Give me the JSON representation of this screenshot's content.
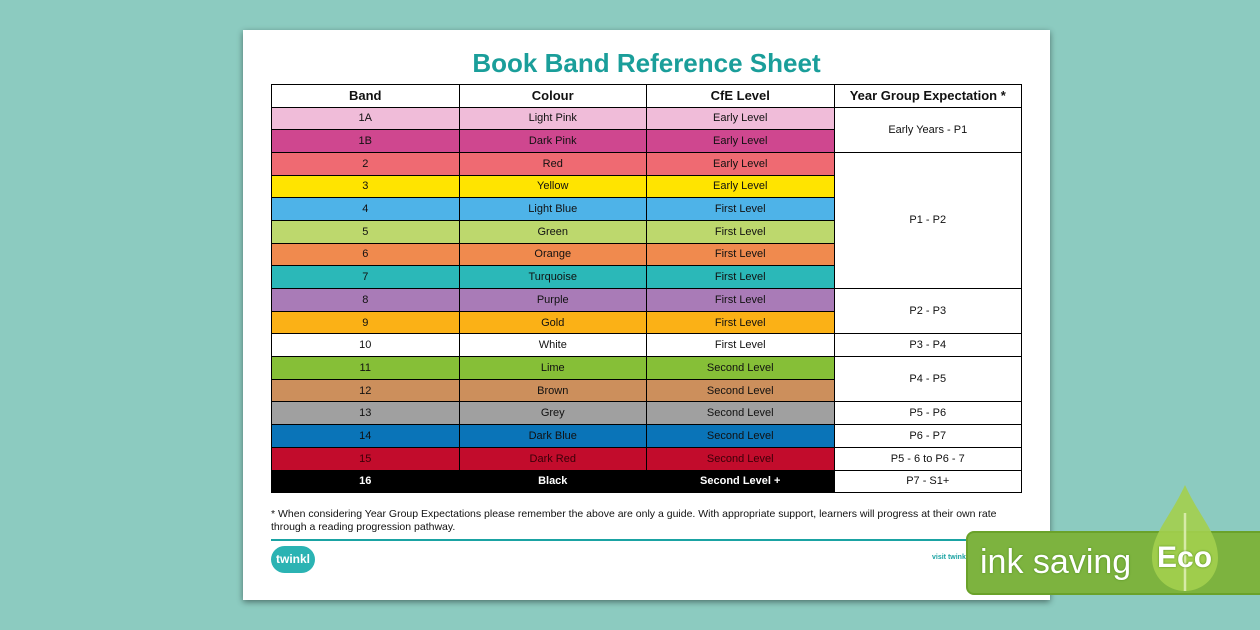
{
  "title": "Book Band Reference Sheet",
  "headers": [
    "Band",
    "Colour",
    "CfE Level",
    "Year Group Expectation *"
  ],
  "rows": [
    {
      "band": "1A",
      "colour": "Light Pink",
      "level": "Early Level",
      "bg": "#f0bcd9",
      "fg": "#111"
    },
    {
      "band": "1B",
      "colour": "Dark Pink",
      "level": "Early Level",
      "bg": "#cf478f",
      "fg": "#111"
    },
    {
      "band": "2",
      "colour": "Red",
      "level": "Early Level",
      "bg": "#ef6a72",
      "fg": "#111"
    },
    {
      "band": "3",
      "colour": "Yellow",
      "level": "Early Level",
      "bg": "#ffe400",
      "fg": "#111"
    },
    {
      "band": "4",
      "colour": "Light Blue",
      "level": "First Level",
      "bg": "#4eb3e8",
      "fg": "#111"
    },
    {
      "band": "5",
      "colour": "Green",
      "level": "First Level",
      "bg": "#bdd86d",
      "fg": "#111"
    },
    {
      "band": "6",
      "colour": "Orange",
      "level": "First Level",
      "bg": "#f08a4e",
      "fg": "#111"
    },
    {
      "band": "7",
      "colour": "Turquoise",
      "level": "First Level",
      "bg": "#2bb8b8",
      "fg": "#111"
    },
    {
      "band": "8",
      "colour": "Purple",
      "level": "First Level",
      "bg": "#a97bb7",
      "fg": "#111"
    },
    {
      "band": "9",
      "colour": "Gold",
      "level": "First Level",
      "bg": "#fbb116",
      "fg": "#111"
    },
    {
      "band": "10",
      "colour": "White",
      "level": "First Level",
      "bg": "#ffffff",
      "fg": "#111"
    },
    {
      "band": "11",
      "colour": "Lime",
      "level": "Second Level",
      "bg": "#86bf37",
      "fg": "#111"
    },
    {
      "band": "12",
      "colour": "Brown",
      "level": "Second Level",
      "bg": "#cc8f5c",
      "fg": "#111"
    },
    {
      "band": "13",
      "colour": "Grey",
      "level": "Second Level",
      "bg": "#a0a0a0",
      "fg": "#111"
    },
    {
      "band": "14",
      "colour": "Dark Blue",
      "level": "Second Level",
      "bg": "#0a74b8",
      "fg": "#111"
    },
    {
      "band": "15",
      "colour": "Dark Red",
      "level": "Second Level",
      "bg": "#c20c2c",
      "fg": "#3a0008"
    },
    {
      "band": "16",
      "colour": "Black",
      "level": "Second Level +",
      "bg": "#000000",
      "fg": "#ffffff"
    }
  ],
  "year_groups": [
    {
      "label": "Early Years - P1",
      "span": 2
    },
    {
      "label": "P1 - P2",
      "span": 6
    },
    {
      "label": "P2 - P3",
      "span": 2
    },
    {
      "label": "P3 - P4",
      "span": 1
    },
    {
      "label": "P4 - P5",
      "span": 2
    },
    {
      "label": "P5 - P6",
      "span": 1
    },
    {
      "label": "P6 - P7",
      "span": 1
    },
    {
      "label": "P5 - 6 to P6 - 7",
      "span": 1
    },
    {
      "label": "P7 - S1+",
      "span": 1
    }
  ],
  "note": "* When considering Year Group Expectations please remember the above are only a guide. With appropriate support, learners will progress at their own rate through a reading progression pathway.",
  "logo": "twinkl",
  "visit": "visit twinkl",
  "badge": {
    "text": "ink saving",
    "word": "Eco",
    "color": "#7db33f"
  }
}
